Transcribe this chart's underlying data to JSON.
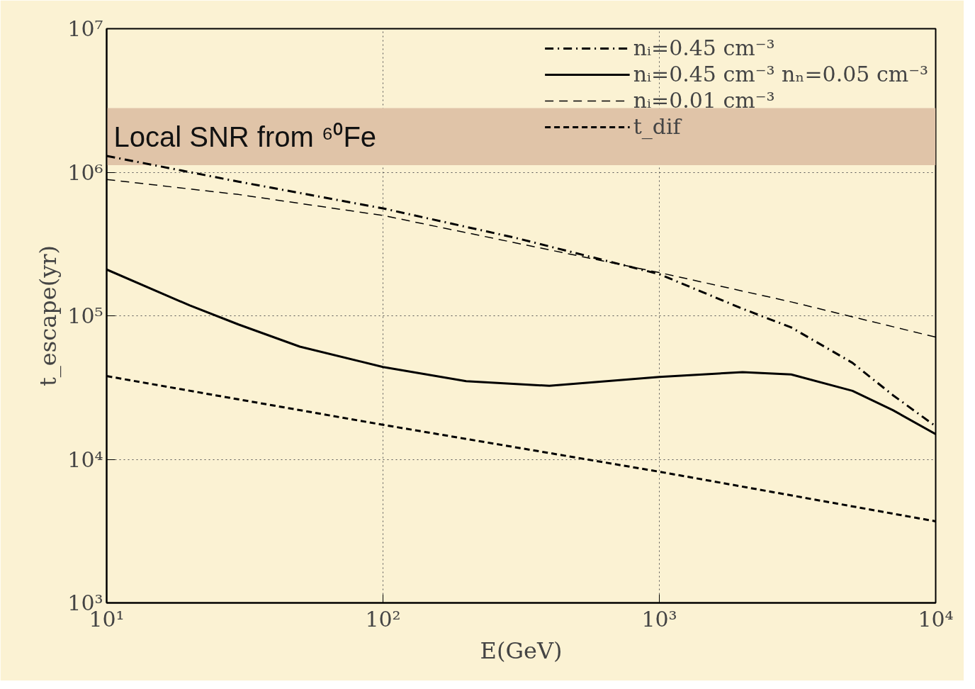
{
  "chart_data": {
    "type": "line",
    "xlabel": "E(GeV)",
    "ylabel": "t_escape(yr)",
    "log": "xy",
    "xlim": [
      10,
      10000
    ],
    "ylim": [
      1000,
      10000000
    ],
    "xticks": [
      {
        "value": 10,
        "label": "10¹"
      },
      {
        "value": 100,
        "label": "10²"
      },
      {
        "value": 1000,
        "label": "10³"
      },
      {
        "value": 10000,
        "label": "10⁴"
      }
    ],
    "yticks": [
      {
        "value": 1000,
        "label": "10³"
      },
      {
        "value": 10000,
        "label": "10⁴"
      },
      {
        "value": 100000,
        "label": "10⁵"
      },
      {
        "value": 1000000,
        "label": "10⁶"
      },
      {
        "value": 10000000,
        "label": "10⁷"
      }
    ],
    "grid": true,
    "legend": "top right",
    "bands": [
      {
        "axis": "y",
        "from": 1120000,
        "to": 2800000,
        "label": "Local SNR from ⁶⁰Fe",
        "color": "#e0c4a8"
      }
    ],
    "series": [
      {
        "name": "nᵢ=0.45 cm⁻³",
        "color": "#000000",
        "line_style": "dashdot",
        "x": [
          10,
          30,
          100,
          300,
          1000,
          2000,
          3000,
          5000,
          7000,
          10000
        ],
        "values": [
          1300000,
          860000,
          560000,
          350000,
          195000,
          112000,
          83000,
          47000,
          28000,
          17000
        ]
      },
      {
        "name": "nᵢ=0.45 cm⁻³ nₙ=0.05 cm⁻³",
        "color": "#000000",
        "line_style": "solid",
        "x": [
          10,
          20,
          30,
          50,
          100,
          200,
          400,
          1000,
          2000,
          3000,
          5000,
          7000,
          10000
        ],
        "values": [
          210000,
          118000,
          87000,
          61000,
          44000,
          35000,
          32500,
          37500,
          40500,
          39000,
          30000,
          22000,
          15000
        ]
      },
      {
        "name": "nᵢ=0.01 cm⁻³",
        "color": "#000000",
        "line_style": "dashed",
        "x": [
          10,
          30,
          100,
          1000,
          3000,
          10000
        ],
        "values": [
          890000,
          700000,
          500000,
          200000,
          125000,
          71000
        ]
      },
      {
        "name": "t_dif",
        "color": "#000000",
        "line_style": "dashed",
        "x": [
          10,
          100,
          1000,
          10000
        ],
        "values": [
          38000,
          17400,
          8200,
          3700
        ]
      }
    ]
  }
}
